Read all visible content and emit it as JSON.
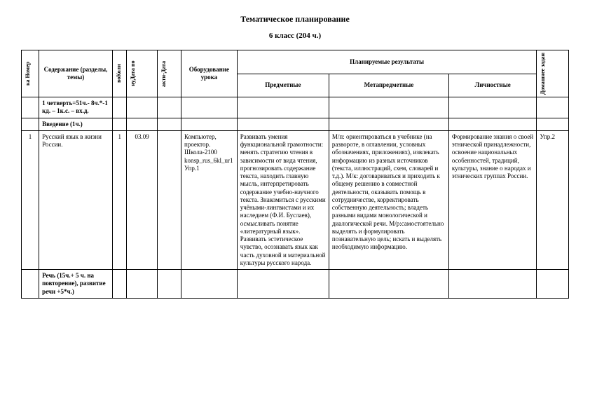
{
  "title": "Тематическое планирование",
  "subtitle": "6 класс (204 ч.)",
  "headers": {
    "num": "ка  Номер",
    "content": "Содержание (разделы, темы)",
    "qty": "воКоли",
    "date_plan": "нуДата по",
    "date_fact": "акти-Дата",
    "equip": "Оборудование урока",
    "results": "Планируемые результаты",
    "subject": "Предметные",
    "meta": "Метапредметные",
    "personal": "Личностные",
    "hw": "Домашнее задание"
  },
  "sections": {
    "quarter": "1 четверть=51ч.- 8ч.*-1 кд. – 1к.с. – вх.д.",
    "intro": "Введение (1ч.)",
    "speech": "Речь (15ч.+ 5 ч. на повторение), развитие речи +5*ч.)"
  },
  "row1": {
    "num": "1",
    "topic": "Русский язык в жизни России.",
    "qty": "1",
    "date": "03.09",
    "equip": "Компьютер, проектор. Школа-2100 konsp_rus_6kl_ur1 Упр.1",
    "subject": "Развивать умения функциональной грамотности: менять стратегию чтения в зависимости от вида чтения, прогнозировать содержание текста, находить главную мысль, интерпретировать содержание учебно-научного текста. Знакомиться с русскими учёными-лингвистами и их наследием (Ф.И. Буслаев), осмысливать понятие «литературный язык». Развивать эстетическое чувство, осознавать язык как часть духовной и материальной культуры русского народа.",
    "meta": "М/п: ориентироваться в учебнике (на развороте, в оглавлении, условных обозначениях, приложениях), извлекать информацию из разных источников (текста, иллюстраций, схем, словарей и т.д.). М/к: договариваться и приходить к общему решению в совместной деятельности, оказывать помощь в сотрудничестве, корректировать собственную деятельность; владеть разными видами монологической и диалогической речи. М/р:самостоятельно выделять и формулировать познавательную цель; искать и выделять необходимую информацию.",
    "personal": "Формирование знания о своей этнической принадлежности, освоение национальных особенностей, традиций, культуры, знание о народах и этнических группах России.",
    "hw": "Упр.2"
  }
}
